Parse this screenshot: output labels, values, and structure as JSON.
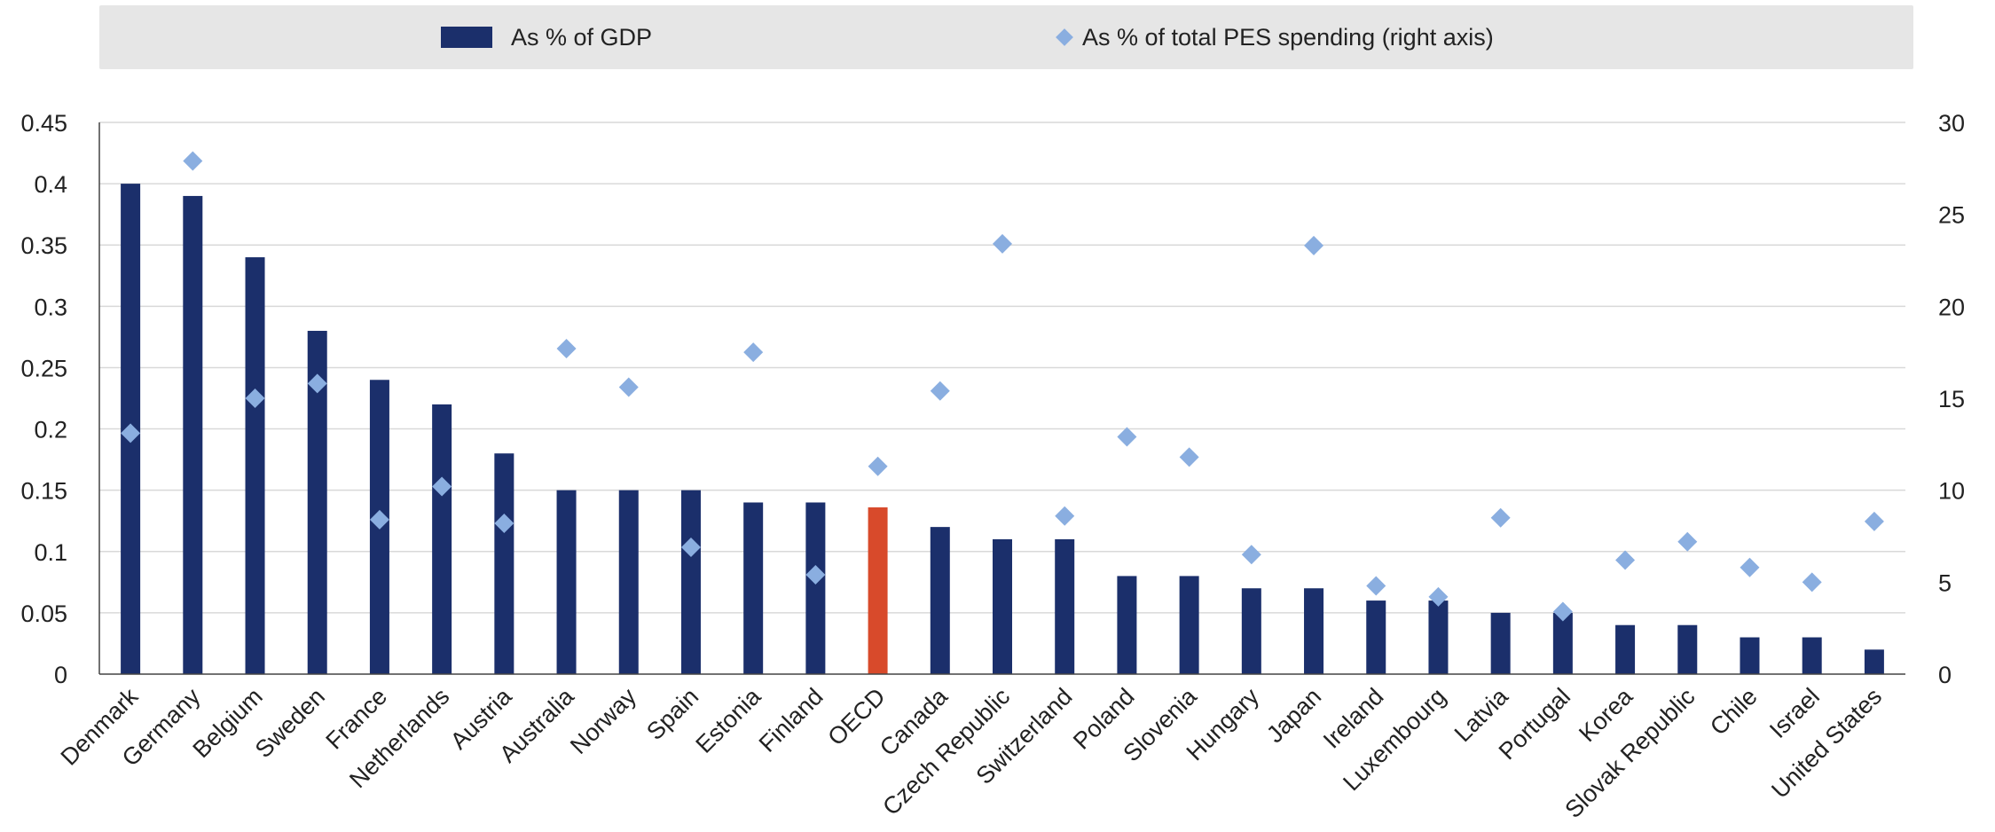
{
  "chart_data": {
    "type": "bar",
    "categories": [
      "Denmark",
      "Germany",
      "Belgium",
      "Sweden",
      "France",
      "Netherlands",
      "Austria",
      "Australia",
      "Norway",
      "Spain",
      "Estonia",
      "Finland",
      "OECD",
      "Canada",
      "Czech Republic",
      "Switzerland",
      "Poland",
      "Slovenia",
      "Hungary",
      "Japan",
      "Ireland",
      "Luxembourg",
      "Latvia",
      "Portugal",
      "Korea",
      "Slovak Republic",
      "Chile",
      "Israel",
      "United States"
    ],
    "series": [
      {
        "name": "As % of GDP",
        "kind": "bar",
        "axis": "left",
        "color": "#1b2f6b",
        "highlight": {
          "category": "OECD",
          "color": "#d84a2b"
        },
        "values": [
          0.4,
          0.39,
          0.34,
          0.28,
          0.24,
          0.22,
          0.18,
          0.15,
          0.15,
          0.15,
          0.14,
          0.14,
          0.136,
          0.12,
          0.11,
          0.11,
          0.08,
          0.08,
          0.07,
          0.07,
          0.06,
          0.06,
          0.05,
          0.05,
          0.04,
          0.04,
          0.03,
          0.03,
          0.02
        ]
      },
      {
        "name": "As % of total PES spending (right axis)",
        "kind": "diamond",
        "axis": "right",
        "color": "#8aaee0",
        "values": [
          13.1,
          27.9,
          15.0,
          15.8,
          8.4,
          10.2,
          8.2,
          17.7,
          15.6,
          6.9,
          17.5,
          5.4,
          11.3,
          15.4,
          23.4,
          8.6,
          12.9,
          11.8,
          6.5,
          23.3,
          4.8,
          4.2,
          8.5,
          3.4,
          6.2,
          7.2,
          5.8,
          5.0,
          8.3
        ]
      }
    ],
    "yleft": {
      "ticks": [
        "0",
        "0.05",
        "0.1",
        "0.15",
        "0.2",
        "0.25",
        "0.3",
        "0.35",
        "0.4",
        "0.45"
      ],
      "ylim": [
        0,
        0.45
      ]
    },
    "yright": {
      "ticks": [
        "0",
        "5",
        "10",
        "15",
        "20",
        "25",
        "30"
      ],
      "ylim": [
        0,
        30
      ]
    },
    "grid": true,
    "legend_position": "top",
    "legend_background": "#e6e6e6",
    "gridline_color": "#d9d9d9"
  }
}
